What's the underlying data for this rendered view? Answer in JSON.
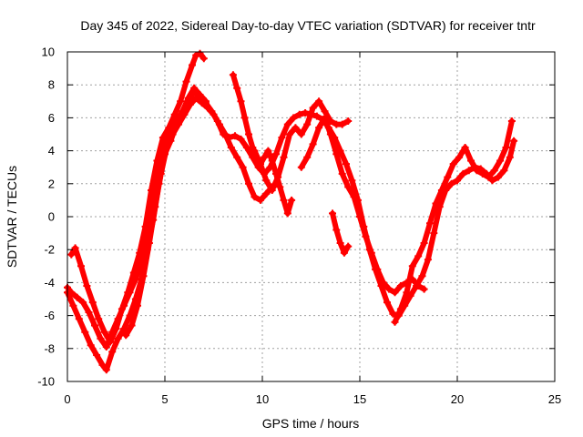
{
  "chart_data": {
    "type": "scatter",
    "title": "Day 345 of 2022, Sidereal Day-to-day VTEC variation (SDTVAR) for receiver tntr",
    "xlabel": "GPS time / hours",
    "ylabel": "SDTVAR / TECUs",
    "xlim": [
      0,
      25
    ],
    "ylim": [
      -10,
      10
    ],
    "xticks": [
      0,
      5,
      10,
      15,
      20,
      25
    ],
    "yticks": [
      -10,
      -8,
      -6,
      -4,
      -2,
      0,
      2,
      4,
      6,
      8,
      10
    ],
    "xtick_labels": [
      "0",
      "5",
      "10",
      "15",
      "20",
      "25"
    ],
    "ytick_labels": [
      "-10",
      "-8",
      "-6",
      "-4",
      "-2",
      "0",
      "2",
      "4",
      "6",
      "8",
      "10"
    ],
    "grid": true,
    "marker": "plus",
    "color": "#ff0000",
    "series": [
      {
        "x": [
          0.0,
          0.2,
          0.5,
          0.8,
          1.1,
          1.4,
          1.7,
          2.0,
          2.3,
          2.6,
          2.9,
          3.2,
          3.5,
          3.8,
          4.1,
          4.4,
          4.7,
          5.0,
          5.3,
          5.6,
          5.9,
          6.2,
          6.5,
          6.8,
          7.1,
          7.4,
          7.7,
          8.0,
          8.3,
          8.6,
          8.9,
          9.2,
          9.5,
          9.8,
          10.1,
          10.4,
          10.7,
          11.0,
          11.3,
          11.6,
          11.9,
          12.2,
          12.5,
          12.8,
          13.1,
          13.4,
          13.7,
          14.0,
          14.3,
          14.6,
          14.9,
          15.2,
          15.5,
          15.8,
          16.1,
          16.4,
          16.7,
          17.0,
          17.3,
          17.6,
          17.9,
          18.2,
          18.5,
          18.8,
          19.1,
          19.4,
          19.7,
          20.0,
          20.3,
          20.6,
          20.9,
          21.2,
          21.5,
          21.8,
          22.1,
          22.4,
          22.7,
          22.9
        ],
        "y": [
          -4.3,
          -4.6,
          -4.9,
          -5.2,
          -5.8,
          -6.6,
          -7.4,
          -7.9,
          -7.0,
          -6.2,
          -5.4,
          -4.6,
          -3.8,
          -2.6,
          -1.0,
          1.2,
          3.2,
          4.6,
          5.2,
          5.8,
          6.4,
          7.0,
          7.6,
          7.3,
          6.9,
          6.4,
          5.8,
          5.0,
          4.8,
          4.9,
          4.7,
          4.2,
          3.6,
          3.0,
          2.6,
          3.0,
          3.8,
          4.8,
          5.6,
          6.0,
          6.2,
          6.3,
          6.2,
          6.1,
          5.9,
          5.4,
          4.8,
          4.0,
          3.2,
          2.2,
          1.0,
          -0.6,
          -2.0,
          -3.2,
          -4.2,
          -5.2,
          -5.9,
          -6.0,
          -5.4,
          -4.8,
          -4.2,
          -3.6,
          -2.6,
          -1.0,
          0.6,
          1.6,
          2.0,
          2.2,
          2.6,
          2.8,
          3.0,
          2.9,
          2.6,
          2.2,
          2.4,
          2.8,
          3.6,
          4.6
        ]
      },
      {
        "x": [
          0.0,
          0.3,
          0.6,
          0.9,
          1.2,
          1.5,
          1.8,
          2.0,
          2.3,
          2.6,
          2.9,
          3.2,
          3.5,
          3.8,
          4.1,
          4.4,
          4.7,
          5.0,
          5.3,
          5.6,
          5.9,
          6.2,
          6.5,
          6.8,
          7.1
        ],
        "y": [
          -4.6,
          -5.4,
          -6.2,
          -7.0,
          -7.8,
          -8.4,
          -9.0,
          -9.3,
          -8.2,
          -7.4,
          -6.8,
          -6.0,
          -5.0,
          -3.8,
          -2.0,
          -0.2,
          2.0,
          3.8,
          4.6,
          5.6,
          6.4,
          7.2,
          7.8,
          7.4,
          7.0
        ]
      },
      {
        "x": [
          0.2,
          0.4,
          0.7,
          1.0,
          1.3,
          1.6,
          1.9,
          2.2,
          2.5,
          2.8,
          3.1,
          3.4,
          3.7,
          4.0,
          4.3,
          4.6,
          4.9,
          5.2,
          5.5,
          5.8,
          6.1,
          6.4,
          6.6,
          6.8,
          7.0
        ],
        "y": [
          -2.3,
          -1.9,
          -3.0,
          -4.2,
          -5.2,
          -6.2,
          -7.0,
          -7.6,
          -6.8,
          -5.6,
          -4.6,
          -3.4,
          -2.2,
          -0.6,
          1.6,
          3.4,
          4.8,
          5.4,
          6.2,
          7.0,
          8.2,
          9.2,
          9.8,
          9.9,
          9.6
        ]
      },
      {
        "x": [
          3.0,
          3.3,
          3.6,
          3.9,
          4.2,
          4.5,
          4.8,
          5.1,
          5.4,
          5.7,
          6.0,
          6.3,
          6.6,
          6.9,
          7.2,
          7.5,
          7.8,
          8.1,
          8.4,
          8.7,
          9.0,
          9.3,
          9.6,
          9.9,
          10.2,
          10.5
        ],
        "y": [
          -7.2,
          -6.6,
          -5.4,
          -3.6,
          -1.6,
          0.6,
          2.6,
          4.2,
          5.0,
          5.6,
          6.2,
          6.8,
          7.2,
          6.9,
          6.6,
          6.2,
          5.6,
          5.0,
          4.2,
          3.6,
          3.0,
          2.0,
          1.2,
          1.0,
          1.4,
          1.8
        ]
      },
      {
        "x": [
          8.5,
          8.7,
          8.9,
          9.1,
          9.3,
          9.5,
          9.7,
          9.9,
          10.1,
          10.3,
          10.5,
          10.7,
          10.9,
          11.1,
          11.3,
          11.5
        ],
        "y": [
          8.6,
          7.8,
          7.0,
          6.0,
          5.0,
          4.2,
          3.6,
          3.2,
          3.6,
          4.0,
          3.4,
          2.6,
          1.8,
          1.0,
          0.2,
          1.0
        ]
      },
      {
        "x": [
          9.6,
          9.9,
          10.2,
          10.5,
          10.8,
          11.1,
          11.4,
          11.7,
          12.0,
          12.3,
          12.6,
          12.9,
          13.2,
          13.5,
          13.8,
          14.1,
          14.4
        ],
        "y": [
          4.0,
          3.2,
          2.2,
          1.6,
          2.4,
          3.6,
          5.0,
          5.4,
          5.0,
          5.6,
          6.6,
          7.0,
          6.4,
          5.8,
          5.6,
          5.6,
          5.8
        ]
      },
      {
        "x": [
          12.0,
          12.3,
          12.6,
          12.9,
          13.2,
          13.5,
          13.8,
          14.1,
          14.4,
          14.7,
          15.0,
          15.3,
          15.6,
          15.9,
          16.2,
          16.5,
          16.8,
          17.1,
          17.4,
          17.7,
          18.0,
          18.3
        ],
        "y": [
          3.0,
          3.6,
          4.4,
          5.4,
          6.0,
          5.0,
          3.8,
          2.6,
          1.8,
          1.2,
          0.0,
          -1.2,
          -2.2,
          -3.2,
          -4.0,
          -4.4,
          -4.6,
          -4.2,
          -4.0,
          -3.8,
          -4.2,
          -4.4
        ]
      },
      {
        "x": [
          13.6,
          13.8,
          14.0,
          14.2,
          14.4
        ],
        "y": [
          0.2,
          -0.8,
          -1.6,
          -2.2,
          -1.8
        ]
      },
      {
        "x": [
          16.8,
          17.1,
          17.4,
          17.7,
          18.0,
          18.3,
          18.6,
          18.9,
          19.2,
          19.5,
          19.8,
          20.1,
          20.4,
          20.7,
          21.0,
          21.3,
          21.6,
          21.9,
          22.2,
          22.5,
          22.8
        ],
        "y": [
          -6.4,
          -5.6,
          -4.6,
          -3.0,
          -2.4,
          -1.6,
          -0.4,
          0.8,
          1.6,
          2.4,
          3.2,
          3.6,
          4.2,
          3.4,
          2.8,
          2.6,
          2.4,
          2.8,
          3.4,
          4.2,
          5.8
        ]
      }
    ]
  }
}
